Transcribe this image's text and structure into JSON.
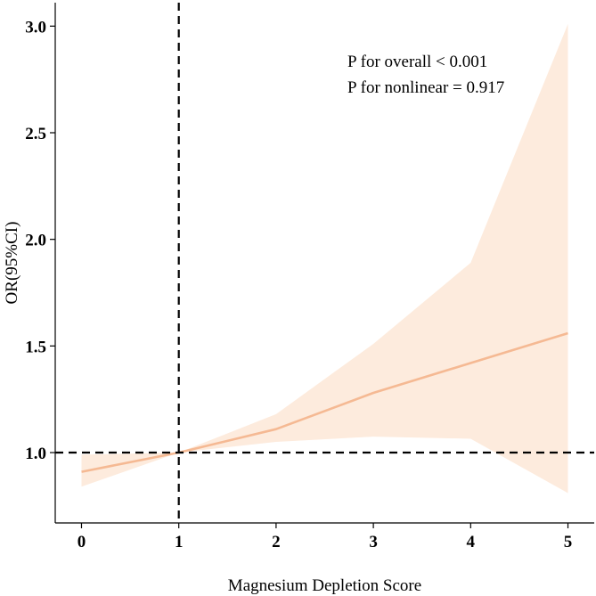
{
  "chart_data": {
    "type": "line",
    "title": "",
    "xlabel": "Magnesium Depletion Score",
    "ylabel": "OR(95%CI)",
    "xlim": [
      -0.27,
      5.27
    ],
    "ylim": [
      0.67,
      3.11
    ],
    "x_ticks": [
      0,
      1,
      2,
      3,
      4,
      5
    ],
    "x_tick_labels": [
      "0",
      "1",
      "2",
      "3",
      "4",
      "5"
    ],
    "y_ticks": [
      1.0,
      1.5,
      2.0,
      2.5,
      3.0
    ],
    "y_tick_labels": [
      "1.0",
      "1.5",
      "2.0",
      "2.5",
      "3.0"
    ],
    "series": [
      {
        "name": "OR",
        "x": [
          0,
          1,
          2,
          3,
          4,
          5
        ],
        "y": [
          0.91,
          1.0,
          1.11,
          1.28,
          1.42,
          1.56
        ],
        "ci_lower": [
          0.84,
          1.0,
          1.05,
          1.075,
          1.065,
          0.81
        ],
        "ci_upper": [
          0.99,
          1.0,
          1.18,
          1.51,
          1.89,
          3.01
        ]
      }
    ],
    "reference_lines": [
      {
        "orientation": "horizontal",
        "value": 1.0,
        "style": "dashed"
      },
      {
        "orientation": "vertical",
        "value": 1,
        "style": "dashed"
      }
    ],
    "annotations": [
      "P for overall < 0.001",
      "P for nonlinear = 0.917"
    ],
    "annotation_placement": "top-right",
    "grid": false
  },
  "colors": {
    "line": "#f5b993",
    "ribbon": "#fdebdd",
    "axis": "#000000",
    "reference": "#000000"
  }
}
